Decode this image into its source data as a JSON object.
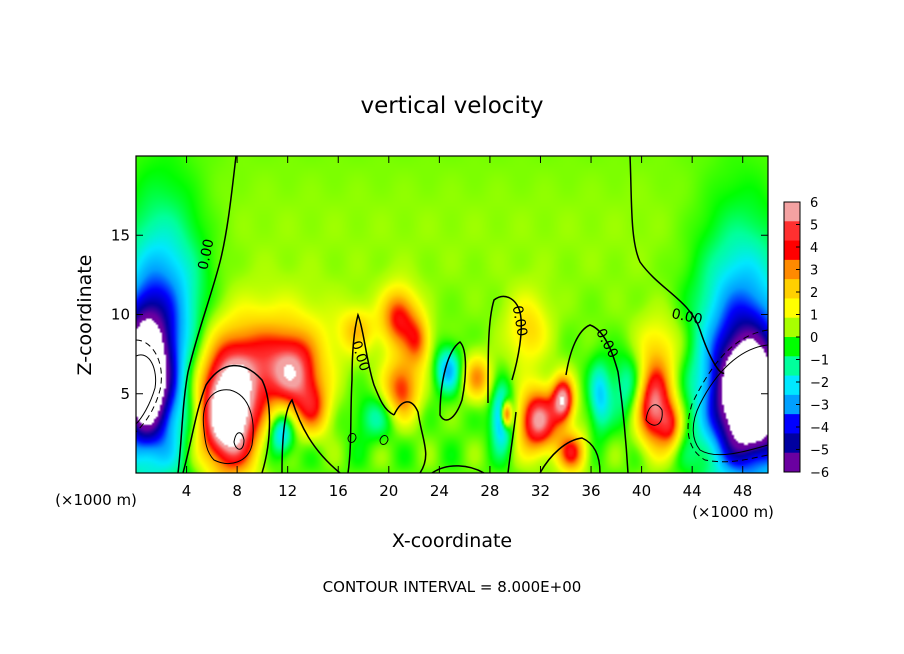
{
  "chart_data": {
    "type": "heatmap",
    "title": "vertical velocity",
    "xlabel": "X-coordinate",
    "ylabel": "Z-coordinate",
    "x_unit_left": "(×1000 m)",
    "x_unit_right": "(×1000 m)",
    "xlim": [
      0,
      50
    ],
    "ylim": [
      0,
      20
    ],
    "x_ticks": [
      {
        "v": 4,
        "label": "4"
      },
      {
        "v": 8,
        "label": "8"
      },
      {
        "v": 12,
        "label": "12"
      },
      {
        "v": 16,
        "label": "16"
      },
      {
        "v": 20,
        "label": "20"
      },
      {
        "v": 24,
        "label": "24"
      },
      {
        "v": 28,
        "label": "28"
      },
      {
        "v": 32,
        "label": "32"
      },
      {
        "v": 36,
        "label": "36"
      },
      {
        "v": 40,
        "label": "40"
      },
      {
        "v": 44,
        "label": "44"
      },
      {
        "v": 48,
        "label": "48"
      }
    ],
    "y_ticks": [
      {
        "v": 5,
        "label": "5"
      },
      {
        "v": 10,
        "label": "10"
      },
      {
        "v": 15,
        "label": "15"
      }
    ],
    "colorbar": {
      "range": [
        -6,
        6
      ],
      "labels": [
        "6",
        "5",
        "4",
        "3",
        "2",
        "1",
        "0",
        "−1",
        "−2",
        "−3",
        "−4",
        "−5",
        "−6"
      ],
      "colors": [
        "#f4a2a2",
        "#ff3030",
        "#ff0000",
        "#ff8a00",
        "#ffd000",
        "#ffff00",
        "#a8ff00",
        "#00ff00",
        "#00ff9c",
        "#00e8ff",
        "#00a0ff",
        "#0000ff",
        "#0000a0",
        "#6a00a0"
      ]
    },
    "contour_labels": [
      {
        "text": "0.00",
        "x": 5.5,
        "z": 13.8,
        "rot": -78
      },
      {
        "text": "0.00",
        "x": 17.8,
        "z": 7.4,
        "rot": 72
      },
      {
        "text": "0.00",
        "x": 30.4,
        "z": 9.6,
        "rot": 80
      },
      {
        "text": "0.00",
        "x": 37.3,
        "z": 8.2,
        "rot": 62
      },
      {
        "text": "0.00",
        "x": 43.6,
        "z": 9.9,
        "rot": 12
      }
    ],
    "features": [
      {
        "x": 7.3,
        "z": 3.5,
        "amp": 9,
        "sx": 1.6,
        "sz": 2.3
      },
      {
        "x": 9.0,
        "z": 6.5,
        "amp": 3,
        "sx": 3.0,
        "sz": 1.8
      },
      {
        "x": 12.5,
        "z": 6.2,
        "amp": 4,
        "sx": 1.4,
        "sz": 1.6
      },
      {
        "x": 14.0,
        "z": 4.0,
        "amp": 3,
        "sx": 1.0,
        "sz": 1.2
      },
      {
        "x": 11.5,
        "z": 2.5,
        "amp": -3,
        "sx": 0.7,
        "sz": 1.0
      },
      {
        "x": 10.5,
        "z": 8.5,
        "amp": 1.5,
        "sx": 4.0,
        "sz": 2.0
      },
      {
        "x": 20.8,
        "z": 9.8,
        "amp": 4,
        "sx": 1.0,
        "sz": 1.3
      },
      {
        "x": 21.0,
        "z": 5.3,
        "amp": 4,
        "sx": 1.0,
        "sz": 1.4
      },
      {
        "x": 17.5,
        "z": 9.0,
        "amp": 2,
        "sx": 1.0,
        "sz": 1.0
      },
      {
        "x": 19.0,
        "z": 3.5,
        "amp": -1.5,
        "sx": 1.2,
        "sz": 1.0
      },
      {
        "x": 22.3,
        "z": 8.3,
        "amp": 3,
        "sx": 0.7,
        "sz": 1.1
      },
      {
        "x": 24.7,
        "z": 6.5,
        "amp": -3,
        "sx": 0.7,
        "sz": 1.0
      },
      {
        "x": 27.0,
        "z": 6.0,
        "amp": 3,
        "sx": 0.8,
        "sz": 1.0
      },
      {
        "x": 29.0,
        "z": 3.5,
        "amp": -4,
        "sx": 0.6,
        "sz": 1.3
      },
      {
        "x": 29.3,
        "z": 3.7,
        "amp": 6,
        "sx": 0.3,
        "sz": 0.6
      },
      {
        "x": 31.8,
        "z": 3.3,
        "amp": 6,
        "sx": 1.1,
        "sz": 1.4
      },
      {
        "x": 33.8,
        "z": 4.6,
        "amp": 6,
        "sx": 0.6,
        "sz": 1.0
      },
      {
        "x": 34.5,
        "z": 1.3,
        "amp": 4,
        "sx": 0.8,
        "sz": 0.9
      },
      {
        "x": 31.0,
        "z": 9.0,
        "amp": 2,
        "sx": 1.2,
        "sz": 1.6
      },
      {
        "x": 36.7,
        "z": 4.8,
        "amp": -2.5,
        "sx": 0.6,
        "sz": 1.5
      },
      {
        "x": 39.0,
        "z": 5.5,
        "amp": -2,
        "sx": 1.0,
        "sz": 1.5
      },
      {
        "x": 41.0,
        "z": 4.3,
        "amp": 6,
        "sx": 1.0,
        "sz": 1.8
      },
      {
        "x": 42.3,
        "z": 3.0,
        "amp": 3,
        "sx": 0.6,
        "sz": 1.0
      },
      {
        "x": 41.5,
        "z": 8.0,
        "amp": 1.5,
        "sx": 1.5,
        "sz": 1.5
      },
      {
        "x": 2.0,
        "z": 8.5,
        "amp": -4.5,
        "sx": 2.3,
        "sz": 5.5
      },
      {
        "x": 0.6,
        "z": 6.0,
        "amp": -7,
        "sx": 1.3,
        "sz": 2.8
      },
      {
        "x": 48.0,
        "z": 7.5,
        "amp": -4.5,
        "sx": 2.5,
        "sz": 5.5
      },
      {
        "x": 48.8,
        "z": 4.5,
        "amp": -7,
        "sx": 2.0,
        "sz": 2.6
      }
    ],
    "footer": "CONTOUR INTERVAL = 8.000E+00"
  }
}
